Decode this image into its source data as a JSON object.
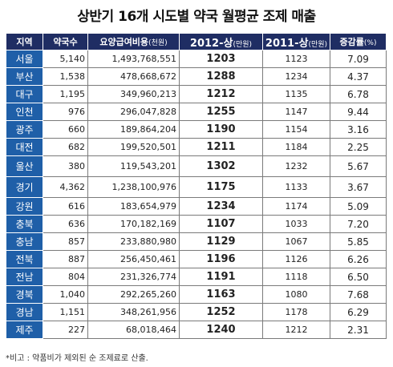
{
  "title": "상반기 16개 시도별 약국 월평균 조제 매출",
  "table": {
    "headers": [
      {
        "label": "지역",
        "unit": ""
      },
      {
        "label": "약국수",
        "unit": ""
      },
      {
        "label": "요양급여비용",
        "unit": "(천원)"
      },
      {
        "label": "2012-상",
        "unit": "(만원)"
      },
      {
        "label": "2011-상",
        "unit": "(만원)"
      },
      {
        "label": "증감률",
        "unit": "(%)"
      }
    ],
    "rows": [
      {
        "region": "서울",
        "pharmacies": "5,140",
        "cost": "1,493,768,551",
        "y2012": "1203",
        "y2011": "1123",
        "rate": "7.09"
      },
      {
        "region": "부산",
        "pharmacies": "1,538",
        "cost": "478,668,672",
        "y2012": "1288",
        "y2011": "1234",
        "rate": "4.37"
      },
      {
        "region": "대구",
        "pharmacies": "1,195",
        "cost": "349,960,213",
        "y2012": "1212",
        "y2011": "1135",
        "rate": "6.78"
      },
      {
        "region": "인천",
        "pharmacies": "976",
        "cost": "296,047,828",
        "y2012": "1255",
        "y2011": "1147",
        "rate": "9.44"
      },
      {
        "region": "광주",
        "pharmacies": "660",
        "cost": "189,864,204",
        "y2012": "1190",
        "y2011": "1154",
        "rate": "3.16"
      },
      {
        "region": "대전",
        "pharmacies": "682",
        "cost": "199,520,501",
        "y2012": "1211",
        "y2011": "1184",
        "rate": "2.25"
      },
      {
        "region": "울산",
        "pharmacies": "380",
        "cost": "119,543,201",
        "y2012": "1302",
        "y2011": "1232",
        "rate": "5.67"
      },
      {
        "region": "경기",
        "pharmacies": "4,362",
        "cost": "1,238,100,976",
        "y2012": "1175",
        "y2011": "1133",
        "rate": "3.67"
      },
      {
        "region": "강원",
        "pharmacies": "616",
        "cost": "183,654,979",
        "y2012": "1234",
        "y2011": "1174",
        "rate": "5.09"
      },
      {
        "region": "충북",
        "pharmacies": "636",
        "cost": "170,182,169",
        "y2012": "1107",
        "y2011": "1033",
        "rate": "7.20"
      },
      {
        "region": "충남",
        "pharmacies": "857",
        "cost": "233,880,980",
        "y2012": "1129",
        "y2011": "1067",
        "rate": "5.85"
      },
      {
        "region": "전북",
        "pharmacies": "887",
        "cost": "256,450,461",
        "y2012": "1196",
        "y2011": "1126",
        "rate": "6.26"
      },
      {
        "region": "전남",
        "pharmacies": "804",
        "cost": "231,326,774",
        "y2012": "1191",
        "y2011": "1118",
        "rate": "6.50"
      },
      {
        "region": "경북",
        "pharmacies": "1,040",
        "cost": "292,265,260",
        "y2012": "1163",
        "y2011": "1080",
        "rate": "7.68"
      },
      {
        "region": "경남",
        "pharmacies": "1,151",
        "cost": "348,261,956",
        "y2012": "1252",
        "y2011": "1178",
        "rate": "6.29"
      },
      {
        "region": "제주",
        "pharmacies": "227",
        "cost": "68,018,464",
        "y2012": "1240",
        "y2011": "1212",
        "rate": "2.31"
      }
    ]
  },
  "footnote": "*비고 : 약품비가 제외된 순 조제료로 산출.",
  "colors": {
    "header_bg": "#1f2d63",
    "region_bg": "#1f5fa8"
  }
}
